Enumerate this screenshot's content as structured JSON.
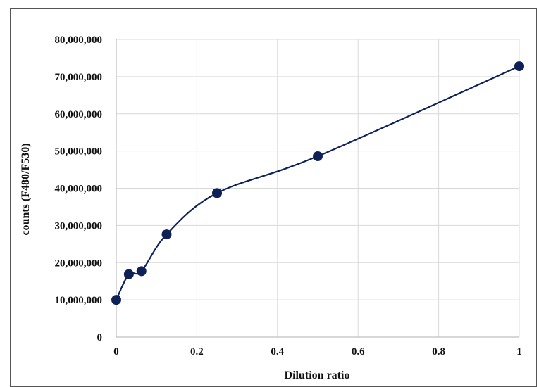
{
  "chart_data": {
    "type": "scatter",
    "title": "",
    "xlabel": "Dilution ratio",
    "ylabel": "counts (F480/F530)",
    "xlim": [
      0,
      1
    ],
    "ylim": [
      0,
      80000000
    ],
    "x_ticks": [
      0,
      0.2,
      0.4,
      0.6,
      0.8,
      1
    ],
    "x_tick_labels": [
      "0",
      "0.2",
      "0.4",
      "0.6",
      "0.8",
      "1"
    ],
    "y_ticks": [
      0,
      10000000,
      20000000,
      30000000,
      40000000,
      50000000,
      60000000,
      70000000,
      80000000
    ],
    "y_tick_labels": [
      "0",
      "10,000,000",
      "20,000,000",
      "30,000,000",
      "40,000,000",
      "50,000,000",
      "60,000,000",
      "70,000,000",
      "80,000,000"
    ],
    "grid": true,
    "smooth_line": true,
    "series": [
      {
        "x": [
          0,
          0.03125,
          0.0625,
          0.125,
          0.25,
          0.5,
          1
        ],
        "y": [
          10000000,
          16900000,
          17700000,
          27600000,
          38700000,
          48600000,
          72800000
        ]
      }
    ],
    "colors": {
      "series": "#0d2157",
      "grid": "#d9d9d9",
      "axis": "#bfbfbf"
    }
  }
}
